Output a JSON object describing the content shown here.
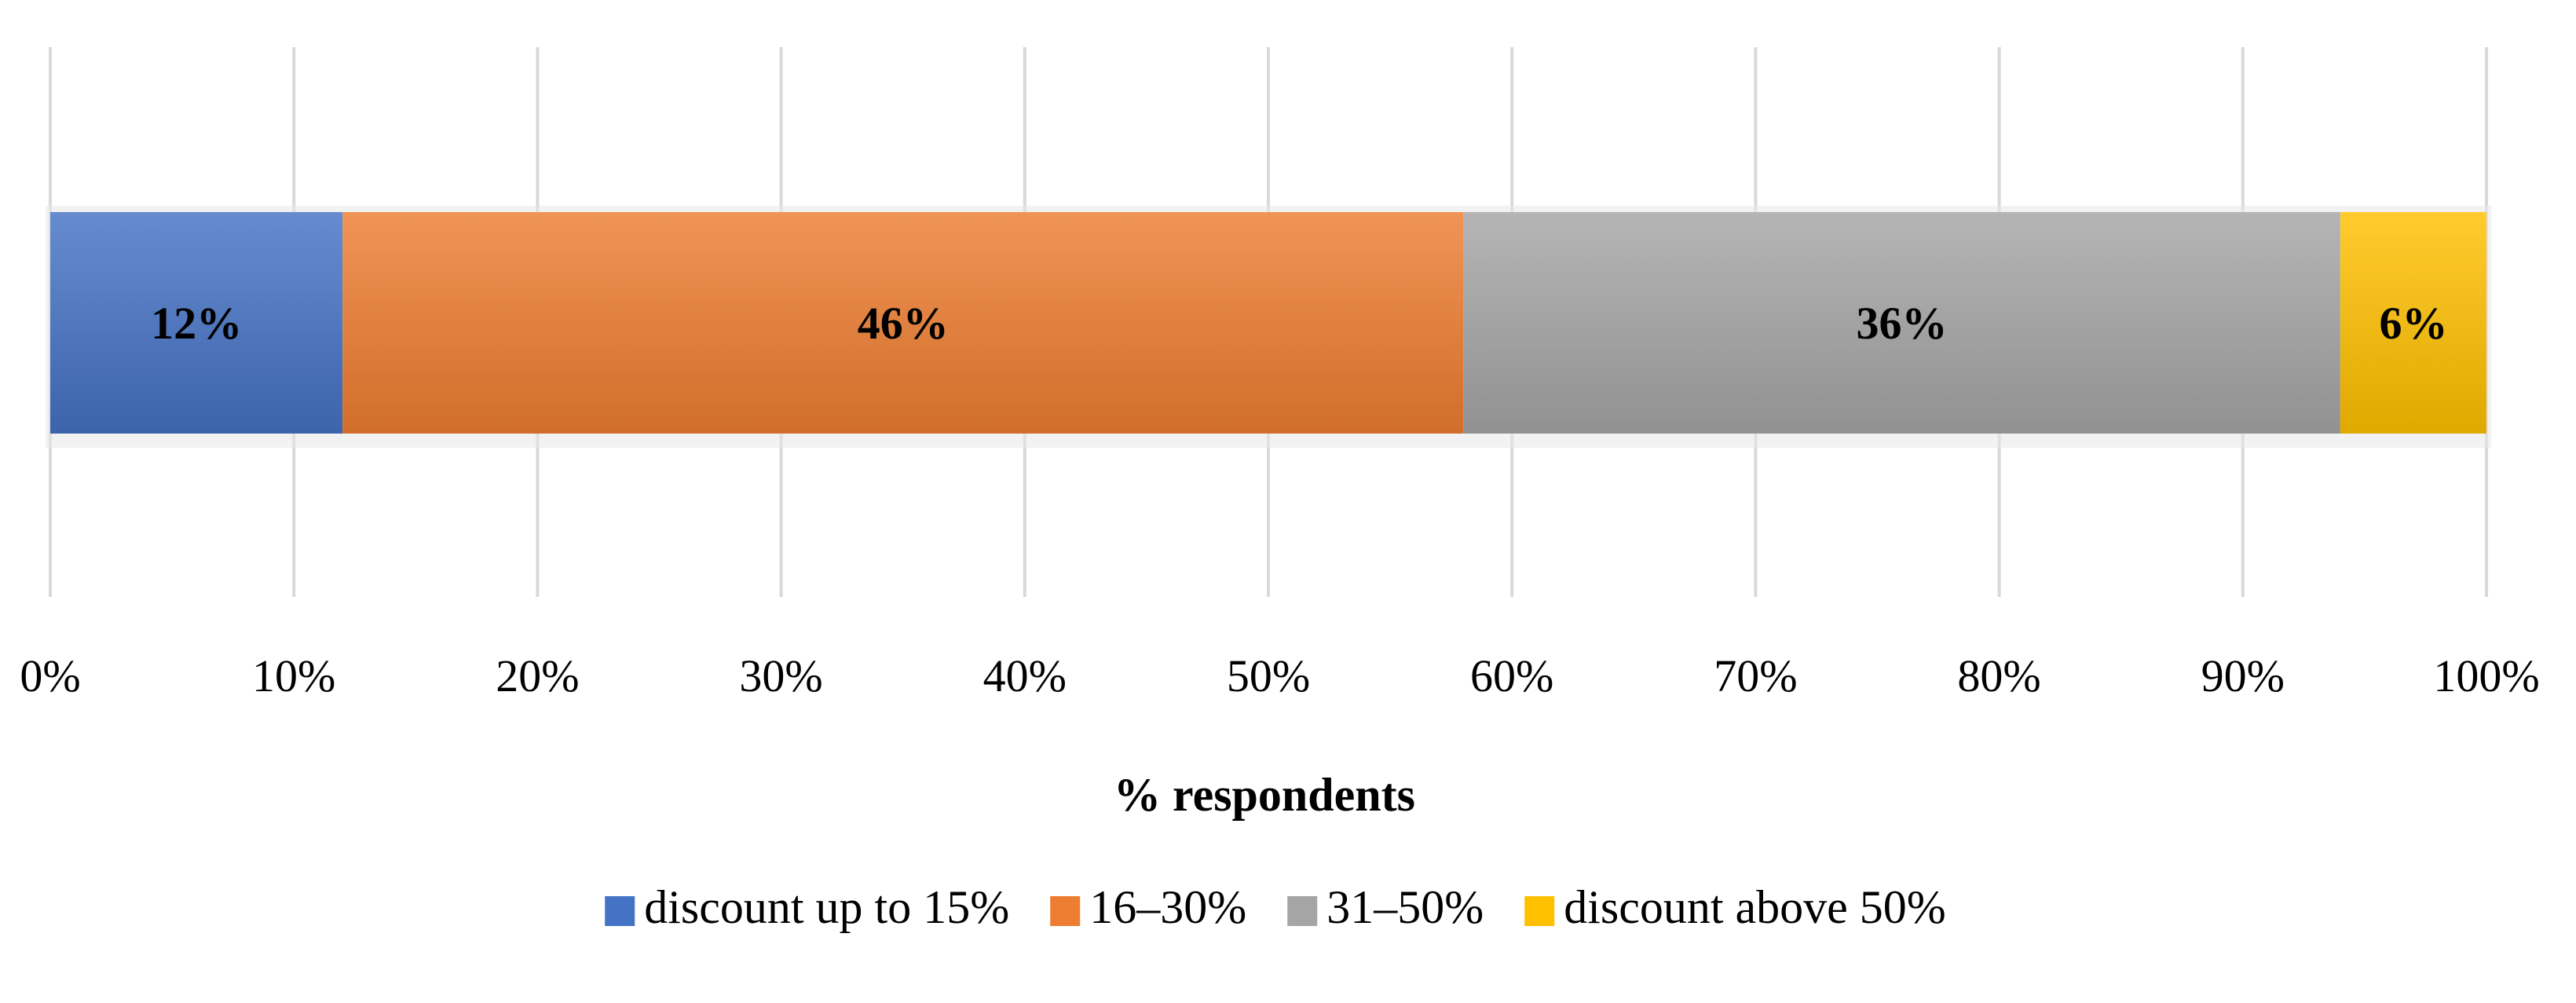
{
  "chart_data": {
    "type": "bar",
    "orientation": "horizontal",
    "stacked": true,
    "categories": [
      ""
    ],
    "series": [
      {
        "name": "discount up to 15%",
        "values": [
          12
        ],
        "label": "12%",
        "color": "#4472C4"
      },
      {
        "name": "16–30%",
        "values": [
          46
        ],
        "label": "46%",
        "color": "#ED7D31"
      },
      {
        "name": "31–50%",
        "values": [
          36
        ],
        "label": "36%",
        "color": "#A5A5A5"
      },
      {
        "name": "discount above 50%",
        "values": [
          6
        ],
        "label": "6%",
        "color": "#FFC000"
      }
    ],
    "title": "",
    "xlabel": "% respondents",
    "ylabel": "",
    "xlim": [
      0,
      100
    ],
    "x_ticks": [
      0,
      10,
      20,
      30,
      40,
      50,
      60,
      70,
      80,
      90,
      100
    ],
    "x_tick_labels": [
      "0%",
      "10%",
      "20%",
      "30%",
      "40%",
      "50%",
      "60%",
      "70%",
      "80%",
      "90%",
      "100%"
    ],
    "grid": true,
    "legend_position": "bottom"
  }
}
